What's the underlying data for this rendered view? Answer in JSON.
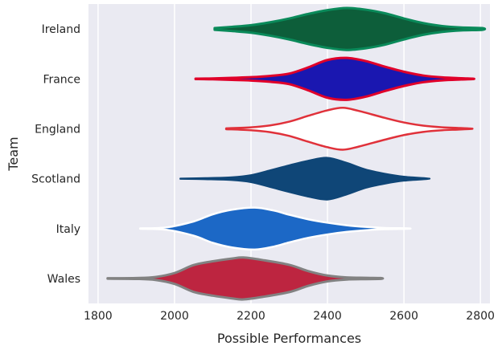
{
  "chart_data": {
    "type": "violin",
    "orientation": "horizontal",
    "xlabel": "Possible Performances",
    "ylabel": "Team",
    "xlim": [
      1775,
      2825
    ],
    "xticks": [
      1800,
      2000,
      2200,
      2400,
      2600,
      2800
    ],
    "grid": true,
    "background": "#EAEAF2",
    "gridColor": "#FFFFFF",
    "categories": [
      "Ireland",
      "France",
      "England",
      "Scotland",
      "Italy",
      "Wales"
    ],
    "series": [
      {
        "name": "Ireland",
        "fill": "#0D5E3A",
        "line": "#0A8A5A",
        "linewidth": 3,
        "profile": [
          [
            2105,
            0.04
          ],
          [
            2150,
            0.1
          ],
          [
            2200,
            0.18
          ],
          [
            2250,
            0.32
          ],
          [
            2300,
            0.5
          ],
          [
            2350,
            0.72
          ],
          [
            2400,
            0.9
          ],
          [
            2450,
            1.0
          ],
          [
            2500,
            0.92
          ],
          [
            2550,
            0.75
          ],
          [
            2600,
            0.5
          ],
          [
            2650,
            0.28
          ],
          [
            2700,
            0.14
          ],
          [
            2750,
            0.07
          ],
          [
            2805,
            0.04
          ]
        ]
      },
      {
        "name": "France",
        "fill": "#1A17B0",
        "line": "#E0002A",
        "linewidth": 3,
        "profile": [
          [
            2055,
            0.01
          ],
          [
            2100,
            0.02
          ],
          [
            2150,
            0.05
          ],
          [
            2200,
            0.08
          ],
          [
            2250,
            0.14
          ],
          [
            2300,
            0.25
          ],
          [
            2350,
            0.55
          ],
          [
            2400,
            0.9
          ],
          [
            2450,
            1.0
          ],
          [
            2500,
            0.85
          ],
          [
            2550,
            0.58
          ],
          [
            2600,
            0.34
          ],
          [
            2650,
            0.16
          ],
          [
            2700,
            0.07
          ],
          [
            2750,
            0.03
          ],
          [
            2780,
            0.01
          ]
        ]
      },
      {
        "name": "England",
        "fill": "#FFFFFF",
        "line": "#E0313A",
        "linewidth": 2.5,
        "profile": [
          [
            2135,
            0.02
          ],
          [
            2200,
            0.07
          ],
          [
            2250,
            0.16
          ],
          [
            2300,
            0.34
          ],
          [
            2350,
            0.62
          ],
          [
            2400,
            0.88
          ],
          [
            2440,
            1.0
          ],
          [
            2480,
            0.86
          ],
          [
            2550,
            0.52
          ],
          [
            2600,
            0.3
          ],
          [
            2650,
            0.15
          ],
          [
            2700,
            0.07
          ],
          [
            2740,
            0.04
          ],
          [
            2775,
            0.01
          ]
        ]
      },
      {
        "name": "Scotland",
        "fill": "#0F4677",
        "line": "#0F4677",
        "linewidth": 2,
        "profile": [
          [
            2015,
            0.01
          ],
          [
            2080,
            0.03
          ],
          [
            2150,
            0.07
          ],
          [
            2200,
            0.17
          ],
          [
            2250,
            0.4
          ],
          [
            2300,
            0.64
          ],
          [
            2350,
            0.86
          ],
          [
            2400,
            1.0
          ],
          [
            2450,
            0.76
          ],
          [
            2500,
            0.44
          ],
          [
            2550,
            0.24
          ],
          [
            2600,
            0.1
          ],
          [
            2660,
            0.02
          ]
        ]
      },
      {
        "name": "Italy",
        "fill": "#1C68C6",
        "line": "#FFFFFF",
        "linewidth": 2.5,
        "profile": [
          [
            1910,
            0.01
          ],
          [
            1980,
            0.06
          ],
          [
            2050,
            0.34
          ],
          [
            2100,
            0.68
          ],
          [
            2150,
            0.9
          ],
          [
            2210,
            1.0
          ],
          [
            2260,
            0.86
          ],
          [
            2300,
            0.66
          ],
          [
            2350,
            0.44
          ],
          [
            2400,
            0.28
          ],
          [
            2450,
            0.16
          ],
          [
            2500,
            0.08
          ],
          [
            2550,
            0.03
          ],
          [
            2610,
            0.01
          ]
        ]
      },
      {
        "name": "Wales",
        "fill": "#BD2540",
        "line": "#828282",
        "linewidth": 3,
        "profile": [
          [
            1825,
            0.01
          ],
          [
            1900,
            0.02
          ],
          [
            1950,
            0.07
          ],
          [
            2000,
            0.26
          ],
          [
            2050,
            0.64
          ],
          [
            2100,
            0.82
          ],
          [
            2150,
            0.95
          ],
          [
            2180,
            1.0
          ],
          [
            2230,
            0.88
          ],
          [
            2300,
            0.65
          ],
          [
            2350,
            0.35
          ],
          [
            2400,
            0.14
          ],
          [
            2450,
            0.05
          ],
          [
            2500,
            0.03
          ],
          [
            2540,
            0.02
          ]
        ]
      }
    ]
  }
}
